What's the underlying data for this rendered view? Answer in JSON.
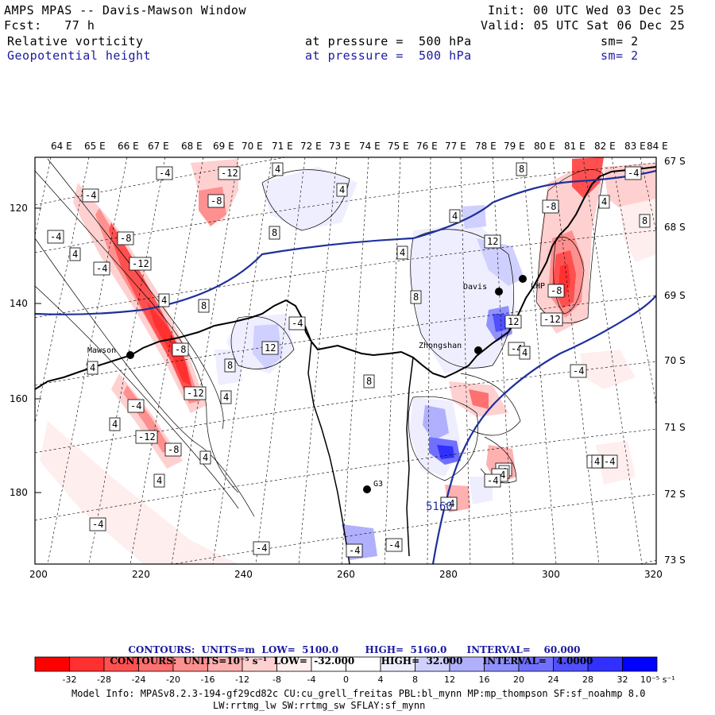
{
  "header": {
    "title": "AMPS MPAS -- Davis-Mawson Window",
    "init": "Init: 00 UTC Wed 03 Dec 25",
    "fcst": "Fcst:   77 h",
    "valid": "Valid: 05 UTC Sat 06 Dec 25",
    "field1": {
      "name": "Relative vorticity",
      "level": "at pressure =  500 hPa",
      "sm": "sm= 2"
    },
    "field2": {
      "name": "Geopotential height",
      "level": "at pressure =  500 hPa",
      "sm": "sm= 2"
    }
  },
  "axes": {
    "top_lon": [
      "64 E",
      "65 E",
      "66 E",
      "67 E",
      "68 E",
      "69 E",
      "70 E",
      "71 E",
      "72 E",
      "73 E",
      "74 E",
      "75 E",
      "76 E",
      "77 E",
      "78 E",
      "79 E",
      "80 E",
      "81 E",
      "82 E",
      "83 E",
      "84 E"
    ],
    "right_lat": [
      "67 S",
      "68 S",
      "69 S",
      "70 S",
      "71 S",
      "72 S",
      "73 S"
    ],
    "left_y": [
      "120",
      "140",
      "160",
      "180"
    ],
    "bottom_x": [
      "200",
      "220",
      "240",
      "260",
      "280",
      "300",
      "320"
    ]
  },
  "stations": [
    {
      "name": "Mawson"
    },
    {
      "name": "Davis"
    },
    {
      "name": "Zhongshan"
    },
    {
      "name": "G3"
    },
    {
      "name": "LHP"
    }
  ],
  "contour_labels": [
    "-4",
    "-12",
    "-4",
    "4",
    "8",
    "-4",
    "-8",
    "-8",
    "-4",
    "4",
    "4",
    "-12",
    "8",
    "-4",
    "4",
    "8",
    "-8",
    "4",
    "12",
    "-12",
    "-8",
    "4",
    "-4",
    "8",
    "8",
    "12",
    "4",
    "-4",
    "-12",
    "-8",
    "8",
    "12",
    "4",
    "4",
    "8",
    "-4",
    "-4",
    "-12",
    "-8",
    "-4",
    "4",
    "4",
    "-4",
    "4",
    "8",
    "-4",
    "-4",
    "-4",
    "-4",
    "-4",
    "4",
    "-4",
    "-4",
    "4",
    "-4",
    "4"
  ],
  "height_label": "5160",
  "colors": {
    "map_border": "#000000",
    "height_contour": "#1f2f9a",
    "coastline": "#000000",
    "neg_strong": "#ff0000",
    "pos_strong": "#0000ff"
  },
  "contour_info": {
    "line1": {
      "contours": "CONTOURS:",
      "units": "UNITS=m",
      "low": "LOW=  5100.0",
      "high": "HIGH=  5160.0",
      "interval": "INTERVAL=    60.000"
    },
    "line2": {
      "contours": "CONTOURS:",
      "units": "UNITS=10⁻⁵ s⁻¹",
      "low": "LOW=  -32.000",
      "high": "HIGH=  32.000",
      "interval": "INTERVAL=   4.0000"
    }
  },
  "colorbar": {
    "ticks": [
      "-32",
      "-28",
      "-24",
      "-20",
      "-16",
      "-12",
      "-8",
      "-4",
      "0",
      "4",
      "8",
      "12",
      "16",
      "20",
      "24",
      "28",
      "32"
    ],
    "units": "10⁻⁵ s⁻¹",
    "colors": [
      "#ff0000",
      "#ff3030",
      "#ff5050",
      "#ff7070",
      "#ff9090",
      "#ffb0b0",
      "#ffd0d0",
      "#ffeeee",
      "#ffffff",
      "#ffffff",
      "#eeeeff",
      "#d0d0ff",
      "#b0b0ff",
      "#9090ff",
      "#7070ff",
      "#5050ff",
      "#3030ff",
      "#0000ff"
    ]
  },
  "model_info": {
    "line1": "Model Info: MPASv8.2.3-194-gf29cd82c CU:cu_grell_freitas PBL:bl_mynn MP:mp_thompson SF:sf_noahmp 8.0",
    "line2": "LW:rrtmg_lw SW:rrtmg_sw SFLAY:sf_mynn"
  }
}
